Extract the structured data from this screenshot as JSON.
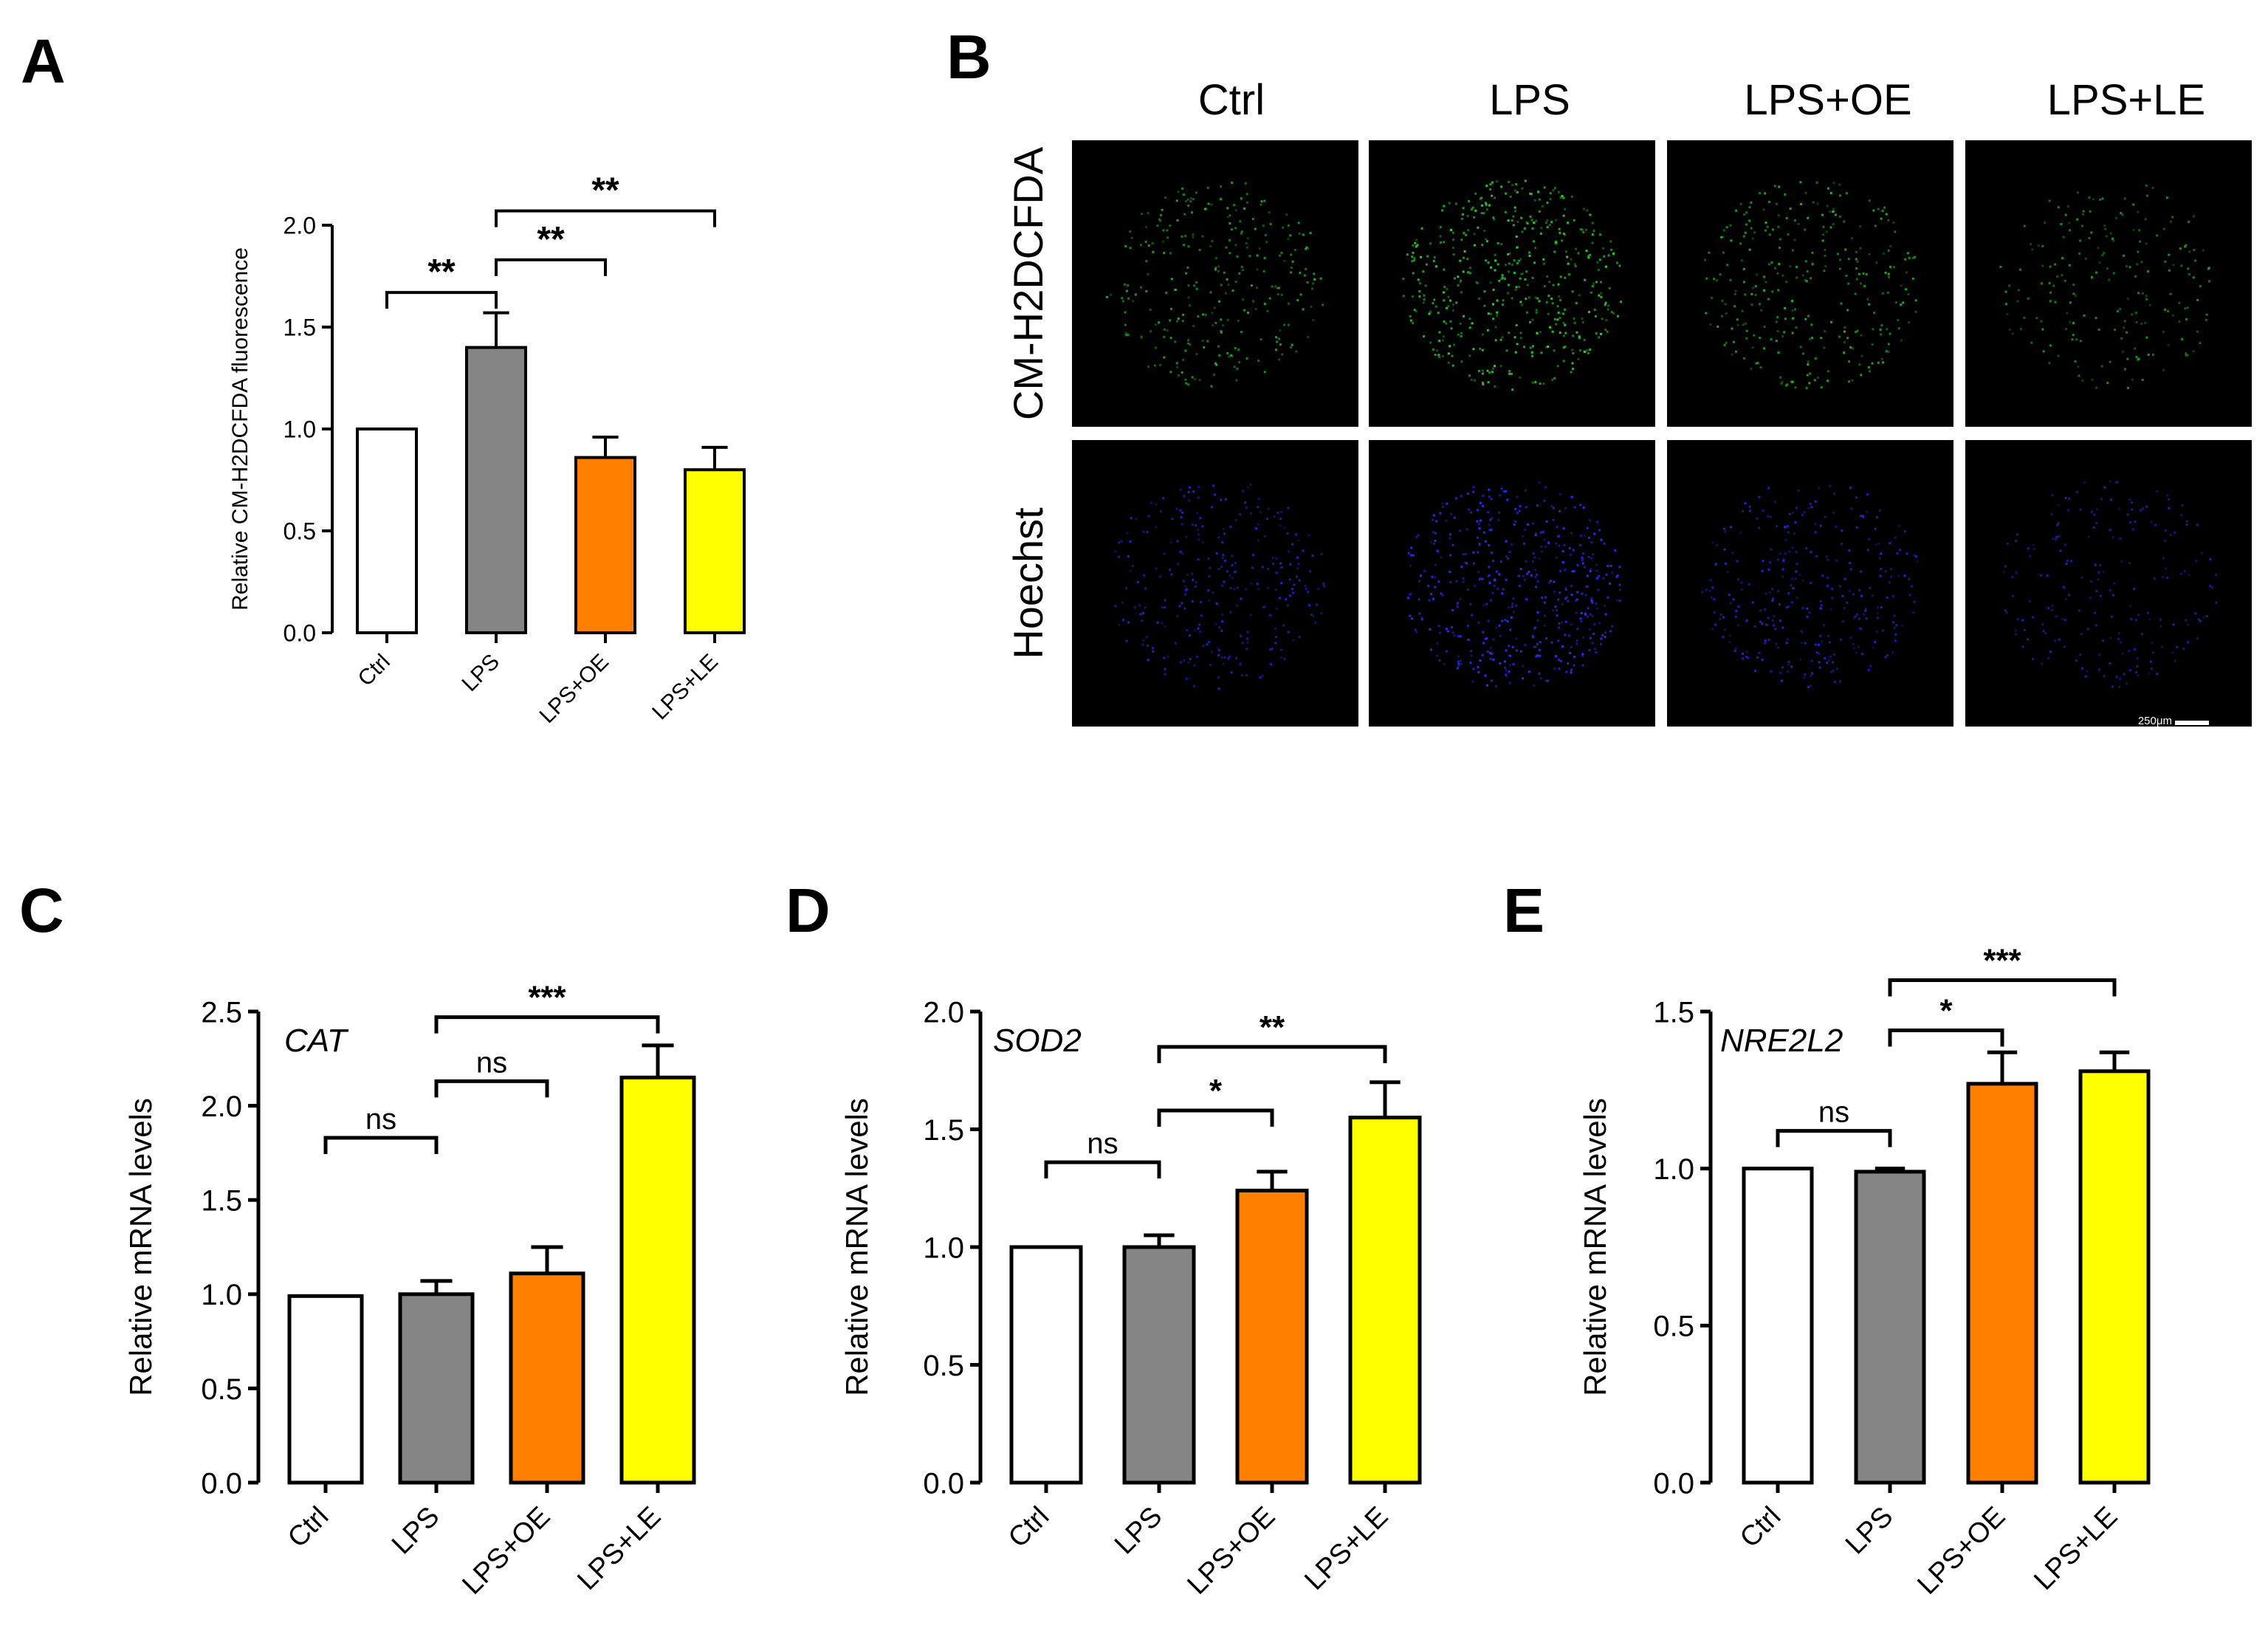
{
  "panels": {
    "A": {
      "letter": "A"
    },
    "B": {
      "letter": "B"
    },
    "C": {
      "letter": "C"
    },
    "D": {
      "letter": "D"
    },
    "E": {
      "letter": "E"
    }
  },
  "micro": {
    "columns": [
      "Ctrl",
      "LPS",
      "LPS+OE",
      "LPS+LE"
    ],
    "rows": [
      "CM-H2DCFDA",
      "Hoechst"
    ],
    "scale_bar": "250μm",
    "colors": {
      "CM-H2DCFDA": "#27d22a",
      "Hoechst": "#2a2cff"
    },
    "spot_intensity": [
      0.55,
      1.0,
      0.6,
      0.35
    ]
  },
  "chart_data": [
    {
      "panel": "A",
      "type": "bar",
      "categories": [
        "Ctrl",
        "LPS",
        "LPS+OE",
        "LPS+LE"
      ],
      "values": [
        1.0,
        1.4,
        0.86,
        0.8
      ],
      "errors": [
        0,
        0.17,
        0.1,
        0.11
      ],
      "colors": [
        "#ffffff",
        "#858585",
        "#ff7f00",
        "#ffff00"
      ],
      "ylabel": "Relative CM-H2DCFDA fluorescence",
      "gene": "",
      "ylim": [
        0,
        2.0
      ],
      "yticks": [
        "0.0",
        "0.5",
        "1.0",
        "1.5",
        "2.0"
      ],
      "comparisons": [
        {
          "a": 0,
          "b": 1,
          "label": "**",
          "y": 1.67
        },
        {
          "a": 1,
          "b": 2,
          "label": "**",
          "y": 1.83
        },
        {
          "a": 1,
          "b": 3,
          "label": "**",
          "y": 2.07
        }
      ]
    },
    {
      "panel": "C",
      "type": "bar",
      "categories": [
        "Ctrl",
        "LPS",
        "LPS+OE",
        "LPS+LE"
      ],
      "values": [
        0.99,
        1.0,
        1.11,
        2.15
      ],
      "errors": [
        0,
        0.07,
        0.14,
        0.17
      ],
      "colors": [
        "#ffffff",
        "#858585",
        "#ff7f00",
        "#ffff00"
      ],
      "ylabel": "Relative mRNA levels",
      "gene": "CAT",
      "ylim": [
        0,
        2.5
      ],
      "yticks": [
        "0.0",
        "0.5",
        "1.0",
        "1.5",
        "2.0",
        "2.5"
      ],
      "comparisons": [
        {
          "a": 0,
          "b": 1,
          "label": "ns",
          "y": 1.83
        },
        {
          "a": 1,
          "b": 2,
          "label": "ns",
          "y": 2.13
        },
        {
          "a": 1,
          "b": 3,
          "label": "***",
          "y": 2.47
        }
      ]
    },
    {
      "panel": "D",
      "type": "bar",
      "categories": [
        "Ctrl",
        "LPS",
        "LPS+OE",
        "LPS+LE"
      ],
      "values": [
        1.0,
        1.0,
        1.24,
        1.55
      ],
      "errors": [
        0,
        0.05,
        0.08,
        0.15
      ],
      "colors": [
        "#ffffff",
        "#858585",
        "#ff7f00",
        "#ffff00"
      ],
      "ylabel": "Relative mRNA levels",
      "gene": "SOD2",
      "ylim": [
        0,
        2.0
      ],
      "yticks": [
        "0.0",
        "0.5",
        "1.0",
        "1.5",
        "2.0"
      ],
      "comparisons": [
        {
          "a": 0,
          "b": 1,
          "label": "ns",
          "y": 1.36
        },
        {
          "a": 1,
          "b": 2,
          "label": "*",
          "y": 1.58
        },
        {
          "a": 1,
          "b": 3,
          "label": "**",
          "y": 1.85
        }
      ]
    },
    {
      "panel": "E",
      "type": "bar",
      "categories": [
        "Ctrl",
        "LPS",
        "LPS+OE",
        "LPS+LE"
      ],
      "values": [
        1.0,
        0.99,
        1.27,
        1.31
      ],
      "errors": [
        0,
        0.01,
        0.1,
        0.06
      ],
      "colors": [
        "#ffffff",
        "#858585",
        "#ff7f00",
        "#ffff00"
      ],
      "ylabel": "Relative mRNA levels",
      "gene": "NRE2L2",
      "ylim": [
        0,
        1.5
      ],
      "yticks": [
        "0.0",
        "0.5",
        "1.0",
        "1.5"
      ],
      "comparisons": [
        {
          "a": 0,
          "b": 1,
          "label": "ns",
          "y": 1.12
        },
        {
          "a": 1,
          "b": 2,
          "label": "*",
          "y": 1.44
        },
        {
          "a": 1,
          "b": 3,
          "label": "***",
          "y": 1.6
        }
      ]
    }
  ]
}
